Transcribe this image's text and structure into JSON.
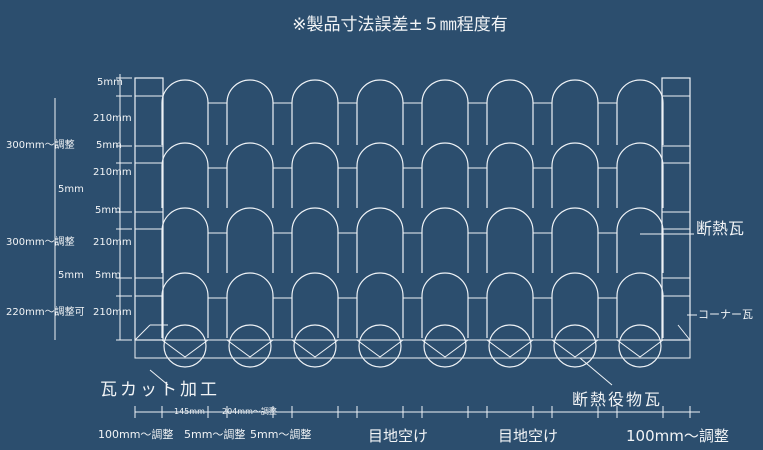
{
  "note": "※製品寸法誤差±５㎜程度有",
  "labels": {
    "insulation_tile": "断熱瓦",
    "corner_tile": "コーナー瓦",
    "tile_cut": "瓦カット加工",
    "insulation_trim_tile": "断熱役物瓦"
  },
  "dims_left": {
    "d5_top": "5mm",
    "d210_a": "210mm",
    "d300_a": "300mm～調整",
    "d5_a": "5mm",
    "d210_b": "210mm",
    "d5_outer": "5mm",
    "d5_b": "5mm",
    "d300_b": "300mm～調整",
    "d210_c": "210mm",
    "d5_outer_b": "5mm",
    "d5_c": "5mm",
    "d220": "220mm～調整可",
    "d210_d": "210mm"
  },
  "dims_bottom": {
    "d145": "145mm",
    "d204": "204mm～調整",
    "d100_left": "100mm～調整",
    "d5_left": "5mm～調整",
    "d5_right": "5mm～調整",
    "joint_1": "目地空け",
    "joint_2": "目地空け",
    "d100_right": "100mm～調整"
  },
  "colors": {
    "background": "#2c4e6e",
    "line": "#eef2f6"
  }
}
